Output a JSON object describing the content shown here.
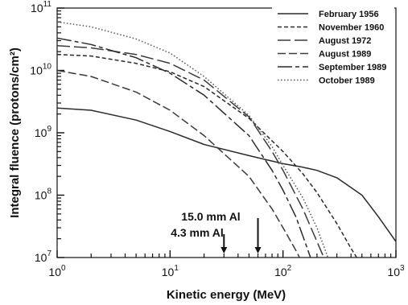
{
  "chart_data": {
    "type": "line",
    "xlabel": "Kinetic energy (MeV)",
    "ylabel": "Integral fluence (protons/cm²)",
    "xscale": "log",
    "yscale": "log",
    "xlim": [
      1,
      1000
    ],
    "ylim": [
      10000000,
      100000000000
    ],
    "x_tick_labels": [
      {
        "value": 1,
        "base": "10",
        "exp": "0"
      },
      {
        "value": 10,
        "base": "10",
        "exp": "1"
      },
      {
        "value": 100,
        "base": "10",
        "exp": "2"
      },
      {
        "value": 1000,
        "base": "10",
        "exp": "3"
      }
    ],
    "y_tick_labels": [
      {
        "value": 10000000,
        "base": "10",
        "exp": "7"
      },
      {
        "value": 100000000,
        "base": "10",
        "exp": "8"
      },
      {
        "value": 1000000000,
        "base": "10",
        "exp": "9"
      },
      {
        "value": 10000000000,
        "base": "10",
        "exp": "10"
      },
      {
        "value": 100000000000,
        "base": "10",
        "exp": "11"
      }
    ],
    "grid": false,
    "legend_position": "top-right",
    "series": [
      {
        "name": "February 1956",
        "color": "#2a2a2a",
        "dash": "solid",
        "points": [
          [
            1,
            2500000000.0
          ],
          [
            2,
            2300000000.0
          ],
          [
            5,
            1600000000.0
          ],
          [
            10,
            1050000000.0
          ],
          [
            20,
            650000000.0
          ],
          [
            50,
            430000000.0
          ],
          [
            100,
            320000000.0
          ],
          [
            150,
            280000000.0
          ],
          [
            200,
            250000000.0
          ],
          [
            300,
            190000000.0
          ],
          [
            500,
            100000000.0
          ],
          [
            700,
            45000000.0
          ],
          [
            1000,
            18000000.0
          ]
        ]
      },
      {
        "name": "November 1960",
        "color": "#2a2a2a",
        "dash": "short",
        "points": [
          [
            1,
            18000000000.0
          ],
          [
            2,
            17000000000.0
          ],
          [
            5,
            13000000000.0
          ],
          [
            10,
            9500000000.0
          ],
          [
            20,
            5500000000.0
          ],
          [
            50,
            1700000000.0
          ],
          [
            100,
            500000000.0
          ],
          [
            150,
            220000000.0
          ],
          [
            200,
            110000000.0
          ],
          [
            300,
            35000000.0
          ],
          [
            400,
            14000000.0
          ],
          [
            450,
            10000000.0
          ]
        ]
      },
      {
        "name": "August 1972",
        "color": "#3a3a3a",
        "dash": "long",
        "points": [
          [
            1,
            25000000000.0
          ],
          [
            2,
            23000000000.0
          ],
          [
            5,
            18000000000.0
          ],
          [
            10,
            13000000000.0
          ],
          [
            20,
            7000000000.0
          ],
          [
            50,
            1800000000.0
          ],
          [
            80,
            500000000.0
          ],
          [
            100,
            250000000.0
          ],
          [
            150,
            60000000.0
          ],
          [
            200,
            18000000.0
          ],
          [
            230,
            10000000.0
          ]
        ]
      },
      {
        "name": "August 1989",
        "color": "#3a3a3a",
        "dash": "medium",
        "points": [
          [
            1,
            10000000000.0
          ],
          [
            2,
            8000000000.0
          ],
          [
            5,
            4500000000.0
          ],
          [
            10,
            2300000000.0
          ],
          [
            20,
            900000000.0
          ],
          [
            50,
            200000000.0
          ],
          [
            80,
            60000000.0
          ],
          [
            100,
            30000000.0
          ],
          [
            130,
            13000000.0
          ],
          [
            140,
            10000000.0
          ]
        ]
      },
      {
        "name": "September 1989",
        "color": "#2a2a2a",
        "dash": "longshort",
        "points": [
          [
            1,
            33000000000.0
          ],
          [
            2,
            26000000000.0
          ],
          [
            5,
            16000000000.0
          ],
          [
            10,
            9000000000.0
          ],
          [
            20,
            4000000000.0
          ],
          [
            50,
            900000000.0
          ],
          [
            80,
            250000000.0
          ],
          [
            100,
            120000000.0
          ],
          [
            130,
            45000000.0
          ],
          [
            160,
            16000000.0
          ],
          [
            175,
            10000000.0
          ]
        ]
      },
      {
        "name": "October 1989",
        "color": "#555555",
        "dash": "dotted",
        "points": [
          [
            1,
            60000000000.0
          ],
          [
            2,
            50000000000.0
          ],
          [
            5,
            32000000000.0
          ],
          [
            10,
            19000000000.0
          ],
          [
            20,
            8000000000.0
          ],
          [
            50,
            1900000000.0
          ],
          [
            80,
            600000000.0
          ],
          [
            100,
            300000000.0
          ],
          [
            150,
            90000000.0
          ],
          [
            200,
            30000000.0
          ],
          [
            250,
            10000000.0
          ]
        ]
      }
    ],
    "annotations": [
      {
        "text": "15.0 mm Al",
        "x": 60
      },
      {
        "text": "4.3 mm Al",
        "x": 30
      }
    ]
  }
}
